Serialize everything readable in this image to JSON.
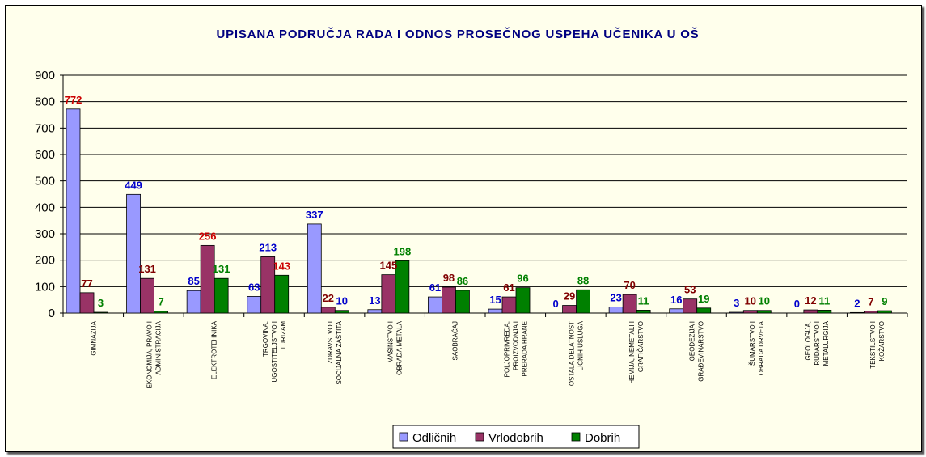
{
  "chart_data": {
    "type": "bar",
    "title": "UPISANA PODRUČJA RADA I ODNOS PROSEČNOG USPEHA UČENIKA U OŠ",
    "xlabel": "",
    "ylabel": "",
    "ylim": [
      0,
      900
    ],
    "yticks": [
      "0",
      "100",
      "200",
      "300",
      "400",
      "500",
      "600",
      "700",
      "800",
      "900"
    ],
    "grid": true,
    "legend_position": "bottom",
    "categories": [
      [
        "GIMNAZIJA"
      ],
      [
        "EKONOMIJA, PRAVO I",
        "ADMINISTRACIJA"
      ],
      [
        "ELEKTROTEHNIKA"
      ],
      [
        "TRGOVINA,",
        "UGOSTITELJSTVO I",
        "TURIZAM"
      ],
      [
        "ZDRAVSTVO I",
        "SOCIJALNA ZAŠTITA"
      ],
      [
        "MAŠINSTVO I",
        "OBRADA METALA"
      ],
      [
        "SAOBRAĆAJ"
      ],
      [
        "POLJOPRIVREDA,",
        "PROIZVODNJA I",
        "PRERADA HRANE"
      ],
      [
        "OSTALA DELATNOST",
        "LIČNIH USLUGA"
      ],
      [
        "HEMIJA, NEMETALI I",
        "GRAFIČARSTVO"
      ],
      [
        "GEODEZIJA I",
        "GRAĐEVINARSTVO"
      ],
      [
        "ŠUMARSTVO I",
        "OBRADA DRVETA"
      ],
      [
        "GEOLOGIJA,",
        "RUDARSTVO I",
        "METALURGIJA"
      ],
      [
        "TEKSTILSTVO I",
        "KOŽARSTVO"
      ]
    ],
    "series": [
      {
        "name": "Odličnih",
        "color": "#9999ff",
        "label_color": "#0000cc",
        "values": [
          772,
          449,
          85,
          63,
          337,
          13,
          61,
          15,
          0,
          23,
          16,
          3,
          0,
          2
        ]
      },
      {
        "name": "Vrlodobrih",
        "color": "#993366",
        "label_color": "#800000",
        "values": [
          77,
          131,
          256,
          213,
          22,
          145,
          98,
          61,
          29,
          70,
          53,
          10,
          12,
          7
        ]
      },
      {
        "name": "Dobrih",
        "color": "#008000",
        "label_color": "#008000",
        "values": [
          3,
          7,
          131,
          143,
          10,
          198,
          86,
          96,
          88,
          11,
          19,
          10,
          11,
          9
        ]
      }
    ],
    "data_labels": [
      [
        "772",
        "449",
        "85",
        "63",
        "337",
        "13",
        "61",
        "15",
        "0",
        "23",
        "16",
        "3",
        "0",
        "2"
      ],
      [
        "77",
        "131",
        "256",
        "213",
        "22",
        "145",
        "98",
        "61",
        "29",
        "70",
        "53",
        "10",
        "12",
        "7"
      ],
      [
        "3",
        "7",
        "131",
        "143",
        "10",
        "198",
        "86",
        "96",
        "88",
        "11",
        "19",
        "10",
        "11",
        "9"
      ]
    ],
    "data_label_colors": [
      [
        "#cc0000",
        "#0000cc",
        "#0000cc",
        "#0000cc",
        "#0000cc",
        "#0000cc",
        "#0000cc",
        "#0000cc",
        "#0000cc",
        "#0000cc",
        "#0000cc",
        "#0000cc",
        "#0000cc",
        "#0000cc"
      ],
      [
        "#800000",
        "#800000",
        "#cc0000",
        "#0000cc",
        "#800000",
        "#800000",
        "#800000",
        "#800000",
        "#800000",
        "#800000",
        "#800000",
        "#800000",
        "#800000",
        "#800000"
      ],
      [
        "#008000",
        "#008000",
        "#008000",
        "#cc0000",
        "#0000cc",
        "#008000",
        "#008000",
        "#008000",
        "#008000",
        "#008000",
        "#008000",
        "#008000",
        "#008000",
        "#008000"
      ]
    ]
  }
}
